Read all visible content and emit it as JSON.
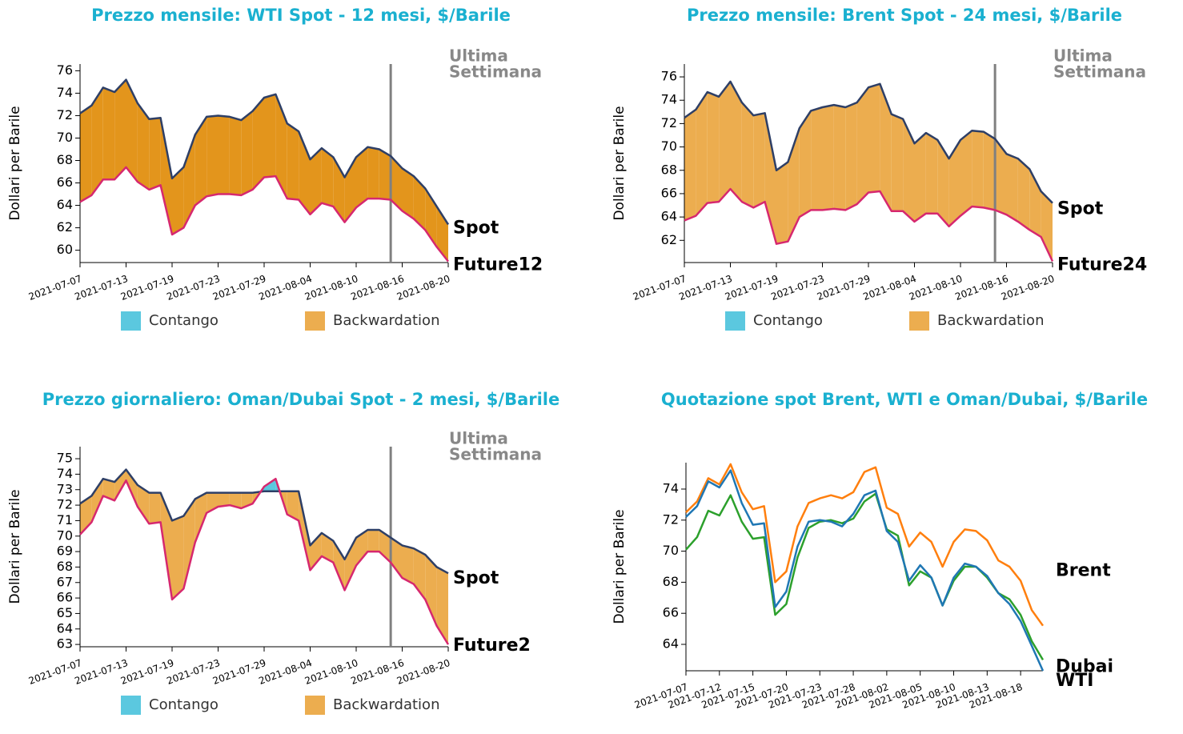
{
  "chart_data": [
    {
      "type": "spread",
      "title": "Prezzo mensile: WTI Spot - 12 mesi, $/Barile",
      "ylabel": "Dollari per Barile",
      "x": [
        "2021-07-07",
        "2021-07-08",
        "2021-07-09",
        "2021-07-12",
        "2021-07-13",
        "2021-07-14",
        "2021-07-15",
        "2021-07-16",
        "2021-07-19",
        "2021-07-20",
        "2021-07-21",
        "2021-07-22",
        "2021-07-23",
        "2021-07-26",
        "2021-07-27",
        "2021-07-28",
        "2021-07-29",
        "2021-07-30",
        "2021-08-02",
        "2021-08-03",
        "2021-08-04",
        "2021-08-05",
        "2021-08-06",
        "2021-08-09",
        "2021-08-10",
        "2021-08-11",
        "2021-08-12",
        "2021-08-13",
        "2021-08-16",
        "2021-08-17",
        "2021-08-18",
        "2021-08-19",
        "2021-08-20"
      ],
      "xticks": [
        "2021-07-07",
        "2021-07-13",
        "2021-07-19",
        "2021-07-23",
        "2021-07-29",
        "2021-08-04",
        "2021-08-10",
        "2021-08-16",
        "2021-08-20"
      ],
      "series": [
        {
          "name": "Spot",
          "color": "#2e3f66",
          "values": [
            72.2,
            72.9,
            74.5,
            74.1,
            75.2,
            73.1,
            71.7,
            71.8,
            66.4,
            67.4,
            70.3,
            71.9,
            72.0,
            71.9,
            71.6,
            72.4,
            73.6,
            73.9,
            71.3,
            70.6,
            68.1,
            69.1,
            68.3,
            66.5,
            68.3,
            69.2,
            69.0,
            68.4,
            67.3,
            66.6,
            65.5,
            63.9,
            62.3
          ]
        },
        {
          "name": "Future12",
          "color": "#d6286f",
          "values": [
            64.3,
            64.9,
            66.3,
            66.3,
            67.4,
            66.1,
            65.4,
            65.8,
            61.4,
            62.0,
            64.0,
            64.8,
            65.0,
            65.0,
            64.9,
            65.4,
            66.5,
            66.6,
            64.6,
            64.5,
            63.2,
            64.2,
            63.9,
            62.5,
            63.8,
            64.6,
            64.6,
            64.5,
            63.5,
            62.8,
            61.8,
            60.3,
            59.0
          ]
        }
      ],
      "fill_colors": {
        "backwardation": "#e3951c",
        "contango": "#5bc8df"
      },
      "legend": [
        {
          "name": "Contango",
          "color": "#5bc8df"
        },
        {
          "name": "Backwardation",
          "color": "#ecad4f"
        }
      ],
      "ylim": [
        58.9,
        76.6
      ],
      "yticks": [
        60,
        62,
        64,
        66,
        68,
        70,
        72,
        74,
        76
      ],
      "vline": "2021-08-13",
      "annotation": [
        "Ultima",
        "Settimana"
      ]
    },
    {
      "type": "spread",
      "title": "Prezzo mensile: Brent Spot - 24 mesi, $/Barile",
      "ylabel": "Dollari per Barile",
      "x": [
        "2021-07-07",
        "2021-07-08",
        "2021-07-09",
        "2021-07-12",
        "2021-07-13",
        "2021-07-14",
        "2021-07-15",
        "2021-07-16",
        "2021-07-19",
        "2021-07-20",
        "2021-07-21",
        "2021-07-22",
        "2021-07-23",
        "2021-07-26",
        "2021-07-27",
        "2021-07-28",
        "2021-07-29",
        "2021-07-30",
        "2021-08-02",
        "2021-08-03",
        "2021-08-04",
        "2021-08-05",
        "2021-08-06",
        "2021-08-09",
        "2021-08-10",
        "2021-08-11",
        "2021-08-12",
        "2021-08-13",
        "2021-08-16",
        "2021-08-17",
        "2021-08-18",
        "2021-08-19",
        "2021-08-20"
      ],
      "xticks": [
        "2021-07-07",
        "2021-07-13",
        "2021-07-19",
        "2021-07-23",
        "2021-07-29",
        "2021-08-04",
        "2021-08-10",
        "2021-08-16",
        "2021-08-20"
      ],
      "series": [
        {
          "name": "Spot",
          "color": "#2e3f66",
          "values": [
            72.5,
            73.2,
            74.7,
            74.3,
            75.6,
            73.8,
            72.7,
            72.9,
            68.0,
            68.7,
            71.6,
            73.1,
            73.4,
            73.6,
            73.4,
            73.8,
            75.1,
            75.4,
            72.8,
            72.4,
            70.3,
            71.2,
            70.6,
            69.0,
            70.6,
            71.4,
            71.3,
            70.7,
            69.4,
            69.0,
            68.1,
            66.2,
            65.2
          ]
        },
        {
          "name": "Future24",
          "color": "#d6286f",
          "values": [
            63.7,
            64.1,
            65.2,
            65.3,
            66.4,
            65.3,
            64.8,
            65.3,
            61.7,
            61.9,
            64.0,
            64.6,
            64.6,
            64.7,
            64.6,
            65.1,
            66.1,
            66.2,
            64.5,
            64.5,
            63.6,
            64.3,
            64.3,
            63.2,
            64.1,
            64.9,
            64.8,
            64.6,
            64.2,
            63.6,
            62.9,
            62.3,
            60.2
          ]
        }
      ],
      "fill_colors": {
        "backwardation": "#ecad4f",
        "contango": "#5bc8df"
      },
      "legend": [
        {
          "name": "Contango",
          "color": "#5bc8df"
        },
        {
          "name": "Backwardation",
          "color": "#ecad4f"
        }
      ],
      "ylim": [
        60.1,
        77.1
      ],
      "yticks": [
        62,
        64,
        66,
        68,
        70,
        72,
        74,
        76
      ],
      "vline": "2021-08-13",
      "annotation": [
        "Ultima",
        "Settimana"
      ]
    },
    {
      "type": "spread",
      "title": "Prezzo giornaliero: Oman/Dubai Spot - 2 mesi, $/Barile",
      "ylabel": "Dollari per Barile",
      "x": [
        "2021-07-07",
        "2021-07-08",
        "2021-07-09",
        "2021-07-12",
        "2021-07-13",
        "2021-07-14",
        "2021-07-15",
        "2021-07-16",
        "2021-07-19",
        "2021-07-20",
        "2021-07-21",
        "2021-07-22",
        "2021-07-23",
        "2021-07-26",
        "2021-07-27",
        "2021-07-28",
        "2021-07-29",
        "2021-07-30",
        "2021-08-02",
        "2021-08-03",
        "2021-08-04",
        "2021-08-05",
        "2021-08-06",
        "2021-08-09",
        "2021-08-10",
        "2021-08-11",
        "2021-08-12",
        "2021-08-13",
        "2021-08-16",
        "2021-08-17",
        "2021-08-18",
        "2021-08-19",
        "2021-08-20"
      ],
      "xticks": [
        "2021-07-07",
        "2021-07-13",
        "2021-07-19",
        "2021-07-23",
        "2021-07-29",
        "2021-08-04",
        "2021-08-10",
        "2021-08-16",
        "2021-08-20"
      ],
      "series": [
        {
          "name": "Spot",
          "color": "#2e3f66",
          "values": [
            72.1,
            72.6,
            73.7,
            73.5,
            74.3,
            73.3,
            72.8,
            72.8,
            71.0,
            71.3,
            72.4,
            72.8,
            72.8,
            72.8,
            72.8,
            72.8,
            72.9,
            72.9,
            72.9,
            72.9,
            69.4,
            70.2,
            69.7,
            68.5,
            69.9,
            70.4,
            70.4,
            69.9,
            69.4,
            69.2,
            68.8,
            68.0,
            67.6
          ]
        },
        {
          "name": "Future2",
          "color": "#d6286f",
          "values": [
            70.1,
            70.9,
            72.6,
            72.3,
            73.6,
            71.9,
            70.8,
            70.9,
            65.9,
            66.6,
            69.6,
            71.5,
            71.9,
            72.0,
            71.8,
            72.1,
            73.2,
            73.7,
            71.4,
            71.0,
            67.8,
            68.7,
            68.3,
            66.5,
            68.1,
            69.0,
            69.0,
            68.3,
            67.3,
            66.9,
            65.9,
            64.2,
            63.0
          ]
        }
      ],
      "fill_colors": {
        "backwardation": "#ecad4f",
        "contango": "#5bc8df"
      },
      "legend": [
        {
          "name": "Contango",
          "color": "#5bc8df"
        },
        {
          "name": "Backwardation",
          "color": "#ecad4f"
        }
      ],
      "ylim": [
        62.85,
        75.78
      ],
      "yticks": [
        63,
        64,
        65,
        66,
        67,
        68,
        69,
        70,
        71,
        72,
        73,
        74,
        75
      ],
      "vline": "2021-08-13",
      "annotation": [
        "Ultima",
        "Settimana"
      ]
    },
    {
      "type": "line",
      "title": "Quotazione spot Brent, WTI e Oman/Dubai, $/Barile",
      "ylabel": "Dollari per Barile",
      "x": [
        "2021-07-07",
        "2021-07-08",
        "2021-07-09",
        "2021-07-12",
        "2021-07-13",
        "2021-07-14",
        "2021-07-15",
        "2021-07-16",
        "2021-07-19",
        "2021-07-20",
        "2021-07-21",
        "2021-07-22",
        "2021-07-23",
        "2021-07-26",
        "2021-07-27",
        "2021-07-28",
        "2021-07-29",
        "2021-07-30",
        "2021-08-02",
        "2021-08-03",
        "2021-08-04",
        "2021-08-05",
        "2021-08-06",
        "2021-08-09",
        "2021-08-10",
        "2021-08-11",
        "2021-08-12",
        "2021-08-13",
        "2021-08-16",
        "2021-08-17",
        "2021-08-18",
        "2021-08-19",
        "2021-08-20"
      ],
      "xticks": [
        "2021-07-07",
        "2021-07-12",
        "2021-07-15",
        "2021-07-20",
        "2021-07-23",
        "2021-07-28",
        "2021-08-02",
        "2021-08-05",
        "2021-08-10",
        "2021-08-13",
        "2021-08-18"
      ],
      "series": [
        {
          "name": "Brent",
          "color": "#ff7f0e",
          "values": [
            72.5,
            73.2,
            74.7,
            74.3,
            75.6,
            73.8,
            72.7,
            72.9,
            68.0,
            68.7,
            71.6,
            73.1,
            73.4,
            73.6,
            73.4,
            73.8,
            75.1,
            75.4,
            72.8,
            72.4,
            70.3,
            71.2,
            70.6,
            69.0,
            70.6,
            71.4,
            71.3,
            70.7,
            69.4,
            69.0,
            68.1,
            66.2,
            65.2
          ]
        },
        {
          "name": "Dubai",
          "color": "#2ca02c",
          "values": [
            70.1,
            70.9,
            72.6,
            72.3,
            73.6,
            71.9,
            70.8,
            70.9,
            65.9,
            66.6,
            69.6,
            71.5,
            71.9,
            72.0,
            71.8,
            72.1,
            73.2,
            73.7,
            71.4,
            71.0,
            67.8,
            68.7,
            68.3,
            66.5,
            68.1,
            69.0,
            69.0,
            68.3,
            67.3,
            66.9,
            65.9,
            64.2,
            63.0
          ]
        },
        {
          "name": "WTI",
          "color": "#1f77b4",
          "values": [
            72.2,
            72.9,
            74.5,
            74.1,
            75.2,
            73.1,
            71.7,
            71.8,
            66.4,
            67.4,
            70.3,
            71.9,
            72.0,
            71.9,
            71.6,
            72.4,
            73.6,
            73.9,
            71.3,
            70.6,
            68.1,
            69.1,
            68.3,
            66.5,
            68.3,
            69.2,
            69.0,
            68.4,
            67.3,
            66.6,
            65.5,
            63.9,
            62.3
          ]
        }
      ],
      "ylim": [
        62.3,
        75.7
      ],
      "yticks": [
        64,
        66,
        68,
        70,
        72,
        74
      ]
    }
  ]
}
